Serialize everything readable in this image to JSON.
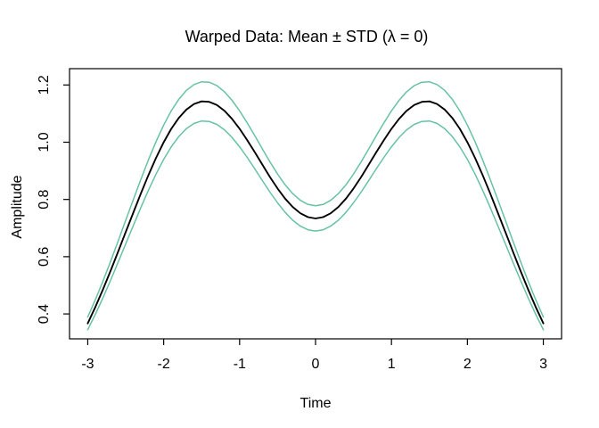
{
  "chart_data": {
    "type": "line",
    "title": "Warped Data: Mean ± STD (λ = 0)",
    "xlabel": "Time",
    "ylabel": "Amplitude",
    "grid": false,
    "legend": "none",
    "xlim": [
      -3.24,
      3.24
    ],
    "ylim": [
      0.313,
      1.257
    ],
    "x_ticks": [
      -3,
      -2,
      -1,
      0,
      1,
      2,
      3
    ],
    "x_tick_labels": [
      "-3",
      "-2",
      "-1",
      "0",
      "1",
      "2",
      "3"
    ],
    "y_ticks": [
      0.4,
      0.6,
      0.8,
      1.0,
      1.2
    ],
    "y_tick_labels": [
      "0.4",
      "0.6",
      "0.8",
      "1.0",
      "1.2"
    ],
    "frame_color": "#000000",
    "std_band_color": "#66C2A5",
    "mean_color": "#000000",
    "x": [
      -3,
      -2.9,
      -2.8,
      -2.7,
      -2.6,
      -2.5,
      -2.4,
      -2.3,
      -2.2,
      -2.1,
      -2,
      -1.9,
      -1.8,
      -1.7,
      -1.6,
      -1.5,
      -1.4,
      -1.3,
      -1.2,
      -1.1,
      -1,
      -0.9,
      -0.8,
      -0.7,
      -0.6,
      -0.5,
      -0.4,
      -0.3,
      -0.2,
      -0.1,
      0,
      0.1,
      0.2,
      0.3,
      0.4,
      0.5,
      0.6,
      0.7,
      0.8,
      0.9,
      1,
      1.1,
      1.2,
      1.3,
      1.4,
      1.5,
      1.6,
      1.7,
      1.8,
      1.9,
      2,
      2.1,
      2.2,
      2.3,
      2.4,
      2.5,
      2.6,
      2.7,
      2.8,
      2.9,
      3
    ],
    "series": [
      {
        "name": "mean-plus-std",
        "color": "#66C2A5",
        "width": 1.5,
        "values": [
          0.3889,
          0.4497,
          0.5146,
          0.5832,
          0.6543,
          0.7269,
          0.7995,
          0.8707,
          0.9388,
          1.0023,
          1.0597,
          1.1094,
          1.1503,
          1.1813,
          1.2016,
          1.2112,
          1.2097,
          1.1978,
          1.1764,
          1.1465,
          1.1097,
          1.0677,
          1.0226,
          0.9763,
          0.931,
          0.8886,
          0.8511,
          0.8201,
          0.7969,
          0.7826,
          0.7777,
          0.7826,
          0.7969,
          0.8201,
          0.8511,
          0.8886,
          0.931,
          0.9763,
          1.0226,
          1.0677,
          1.1097,
          1.1465,
          1.1764,
          1.1978,
          1.2097,
          1.2112,
          1.2016,
          1.1813,
          1.1503,
          1.1094,
          1.0597,
          1.0023,
          0.9388,
          0.8707,
          0.7995,
          0.7269,
          0.6543,
          0.5832,
          0.5146,
          0.4497,
          0.3889
        ]
      },
      {
        "name": "mean-minus-std",
        "color": "#66C2A5",
        "width": 1.5,
        "values": [
          0.3449,
          0.3987,
          0.4564,
          0.5172,
          0.5803,
          0.6447,
          0.7089,
          0.7721,
          0.8326,
          0.8889,
          0.9397,
          0.9838,
          1.0201,
          1.0475,
          1.0656,
          1.074,
          1.0727,
          1.0622,
          1.0432,
          1.0167,
          0.9841,
          0.9469,
          0.9068,
          0.8657,
          0.8256,
          0.788,
          0.7547,
          0.7273,
          0.7067,
          0.694,
          0.6897,
          0.694,
          0.7067,
          0.7273,
          0.7547,
          0.788,
          0.8256,
          0.8657,
          0.9068,
          0.9469,
          0.9841,
          1.0167,
          1.0432,
          1.0622,
          1.0727,
          1.074,
          1.0656,
          1.0475,
          1.0201,
          0.9838,
          0.9397,
          0.8889,
          0.8326,
          0.7721,
          0.7089,
          0.6447,
          0.5803,
          0.5172,
          0.4564,
          0.3987,
          0.3449
        ]
      },
      {
        "name": "mean",
        "color": "#000000",
        "width": 1.9,
        "values": [
          0.3669,
          0.4242,
          0.4855,
          0.5502,
          0.6173,
          0.6858,
          0.7542,
          0.8214,
          0.8857,
          0.9456,
          0.9997,
          1.0466,
          1.0852,
          1.1144,
          1.1336,
          1.1426,
          1.1412,
          1.13,
          1.1098,
          1.0816,
          1.0469,
          1.0073,
          0.9647,
          0.921,
          0.8783,
          0.8383,
          0.8029,
          0.7737,
          0.7518,
          0.7383,
          0.7337,
          0.7383,
          0.7518,
          0.7737,
          0.8029,
          0.8383,
          0.8783,
          0.921,
          0.9647,
          1.0073,
          1.0469,
          1.0816,
          1.1098,
          1.13,
          1.1412,
          1.1426,
          1.1336,
          1.1144,
          1.0852,
          1.0466,
          0.9997,
          0.9456,
          0.8857,
          0.8214,
          0.7542,
          0.6858,
          0.6173,
          0.5502,
          0.4855,
          0.4242,
          0.3669
        ]
      }
    ]
  }
}
